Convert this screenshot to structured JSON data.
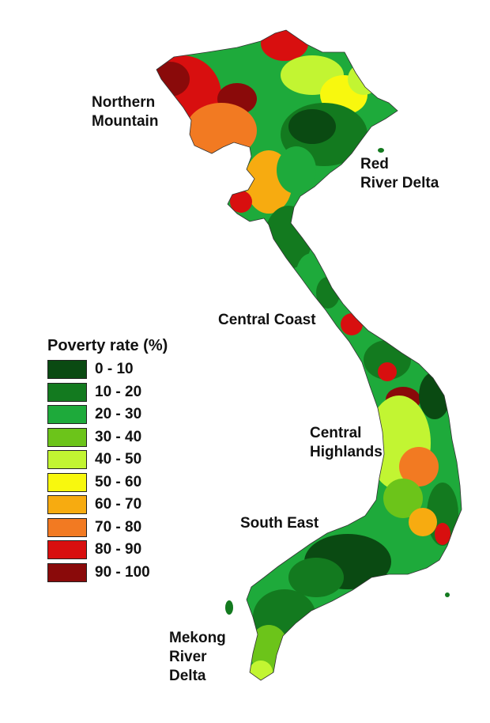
{
  "regions": {
    "northern_mountain": "Northern\nMountain",
    "red_river_delta": "Red\nRiver Delta",
    "central_coast": "Central Coast",
    "central_highlands": "Central\nHighlands",
    "south_east": "South East",
    "mekong_river_delta": "Mekong\nRiver\nDelta"
  },
  "legend": {
    "title": "Poverty rate (%)",
    "items": [
      {
        "label": "0 - 10",
        "color": "#0a4a12"
      },
      {
        "label": "10 - 20",
        "color": "#137a1f"
      },
      {
        "label": "20 - 30",
        "color": "#1eaa3b"
      },
      {
        "label": "30 - 40",
        "color": "#6cc41a"
      },
      {
        "label": "40 - 50",
        "color": "#c2f532"
      },
      {
        "label": "50 - 60",
        "color": "#f8f80e"
      },
      {
        "label": "60 - 70",
        "color": "#f7ab10"
      },
      {
        "label": "70 - 80",
        "color": "#f27a22"
      },
      {
        "label": "80 - 90",
        "color": "#d80f0f"
      },
      {
        "label": "90 - 100",
        "color": "#8a0a0a"
      }
    ]
  }
}
